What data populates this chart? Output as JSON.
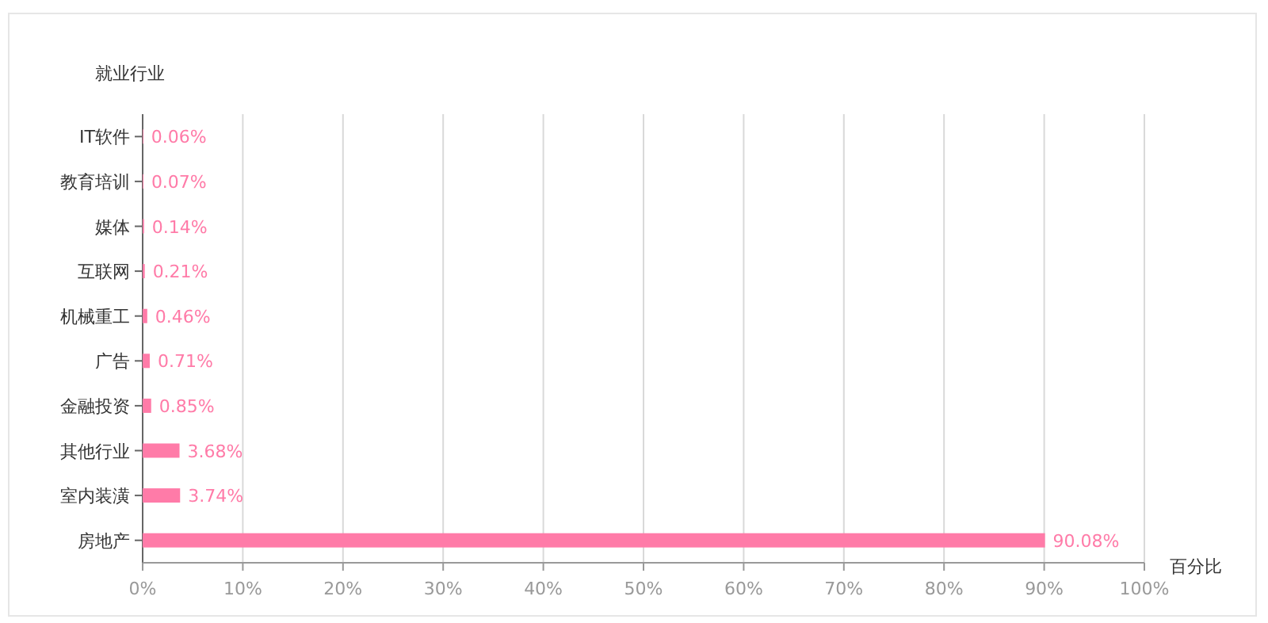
{
  "chart_data": {
    "type": "bar",
    "orientation": "horizontal",
    "ylabel": "就业行业",
    "xlabel": "百分比",
    "categories": [
      "IT软件",
      "教育培训",
      "媒体",
      "互联网",
      "机械重工",
      "广告",
      "金融投资",
      "其他行业",
      "室内装潢",
      "房地产"
    ],
    "values": [
      0.06,
      0.07,
      0.14,
      0.21,
      0.46,
      0.71,
      0.85,
      3.68,
      3.74,
      90.08
    ],
    "value_labels": [
      "0.06%",
      "0.07%",
      "0.14%",
      "0.21%",
      "0.46%",
      "0.71%",
      "0.85%",
      "3.68%",
      "3.74%",
      "90.08%"
    ],
    "color": "#ff7ba8",
    "xlim": [
      0,
      100
    ],
    "xticks": [
      {
        "value": 0,
        "label": "0%"
      },
      {
        "value": 10,
        "label": "10%"
      },
      {
        "value": 20,
        "label": "20%"
      },
      {
        "value": 30,
        "label": "30%"
      },
      {
        "value": 40,
        "label": "40%"
      },
      {
        "value": 50,
        "label": "50%"
      },
      {
        "value": 60,
        "label": "60%"
      },
      {
        "value": 70,
        "label": "70%"
      },
      {
        "value": 80,
        "label": "80%"
      },
      {
        "value": 90,
        "label": "90%"
      },
      {
        "value": 100,
        "label": "100%"
      }
    ],
    "grid": "x"
  }
}
